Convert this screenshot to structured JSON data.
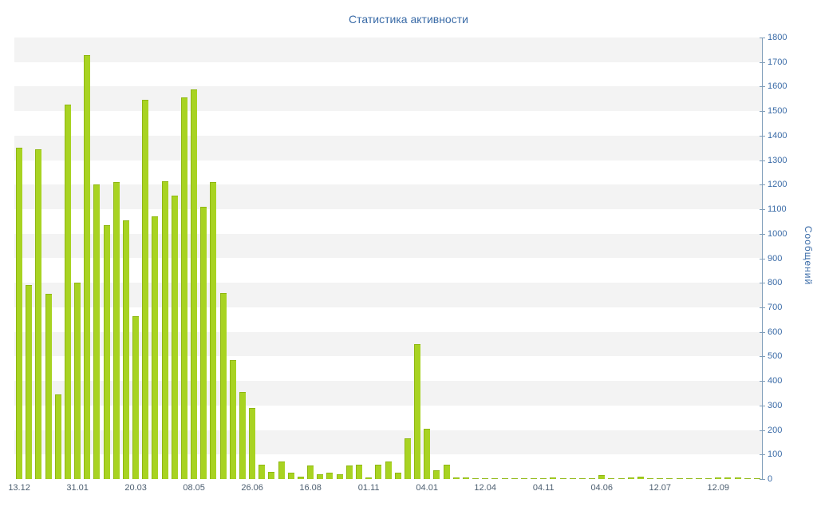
{
  "chart_data": {
    "type": "bar",
    "title": "Статистика активности",
    "ylabel": "Сообщений",
    "xlabel": "",
    "ylim": [
      0,
      1800
    ],
    "y_step": 100,
    "grid": "horizontal-bands",
    "legend": "none",
    "x_tick_labels": [
      "13.12",
      "31.01",
      "20.03",
      "08.05",
      "26.06",
      "16.08",
      "01.11",
      "04.01",
      "12.04",
      "04.11",
      "04.06",
      "12.07",
      "12.09"
    ],
    "x_tick_indices": [
      0,
      6,
      12,
      18,
      24,
      30,
      36,
      42,
      48,
      54,
      60,
      66,
      72
    ],
    "values": [
      1350,
      790,
      1345,
      755,
      345,
      1525,
      800,
      1730,
      1200,
      1035,
      1210,
      1055,
      665,
      1545,
      1070,
      1215,
      1155,
      1555,
      1590,
      1110,
      1210,
      760,
      485,
      355,
      290,
      60,
      30,
      70,
      25,
      10,
      55,
      20,
      25,
      20,
      55,
      60,
      5,
      60,
      70,
      25,
      165,
      550,
      205,
      35,
      60,
      8,
      5,
      3,
      2,
      3,
      2,
      3,
      2,
      3,
      2,
      8,
      3,
      2,
      3,
      2,
      15,
      3,
      2,
      8,
      10,
      3,
      2,
      3,
      2,
      3,
      2,
      3,
      5,
      8,
      5,
      3,
      2
    ],
    "colors": {
      "bar_fill": "#a8d322",
      "bar_border": "#8fb712",
      "band_gray": "#f3f3f3",
      "band_white": "#ffffff",
      "axis_line": "#7f9db9",
      "title_text": "#3a6ba7",
      "y_tick_text": "#3a6ba7",
      "x_tick_text": "#4c5e70",
      "y_axis_title_text": "#3a6ba7"
    }
  }
}
